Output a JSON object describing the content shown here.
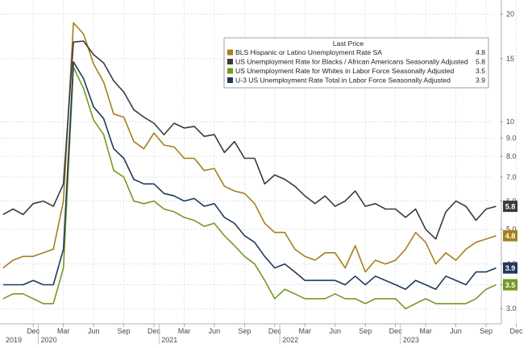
{
  "chart_data": {
    "type": "line",
    "title": "",
    "xlabel": "",
    "ylabel": "",
    "y_axis_position": "right",
    "y_scale": "log",
    "ylim": [
      2.75,
      21
    ],
    "y_ticks": [
      "3.0",
      "3.5",
      "4.0",
      "5.0",
      "6.0",
      "7.0",
      "8.0",
      "9.0",
      "10",
      "15",
      "20"
    ],
    "x_tick_labels": [
      "Dec",
      "Mar",
      "Jun",
      "Sep",
      "Dec",
      "Mar",
      "Jun",
      "Sep",
      "Dec",
      "Mar",
      "Jun",
      "Sep",
      "Dec",
      "Mar",
      "Jun",
      "Sep",
      "Dec",
      "Mar",
      "Jun",
      "Sep"
    ],
    "year_labels": [
      "2019",
      "2020",
      "2021",
      "2022",
      "2023"
    ],
    "legend_title": "Last Price",
    "legend_position": "top-right",
    "highlight": {
      "from_index": 50,
      "to_index": 53,
      "color": "#f08a95"
    },
    "x": [
      "2019-09",
      "2019-10",
      "2019-11",
      "2019-12",
      "2020-01",
      "2020-02",
      "2020-03",
      "2020-04",
      "2020-05",
      "2020-06",
      "2020-07",
      "2020-08",
      "2020-09",
      "2020-10",
      "2020-11",
      "2020-12",
      "2021-01",
      "2021-02",
      "2021-03",
      "2021-04",
      "2021-05",
      "2021-06",
      "2021-07",
      "2021-08",
      "2021-09",
      "2021-10",
      "2021-11",
      "2021-12",
      "2022-01",
      "2022-02",
      "2022-03",
      "2022-04",
      "2022-05",
      "2022-06",
      "2022-07",
      "2022-08",
      "2022-09",
      "2022-10",
      "2022-11",
      "2022-12",
      "2023-01",
      "2023-02",
      "2023-03",
      "2023-04",
      "2023-05",
      "2023-06",
      "2023-07",
      "2023-08",
      "2023-09",
      "2023-10"
    ],
    "series": [
      {
        "name": "BLS Hispanic or Latino Unemployment Rate SA",
        "last": "4.8",
        "color": "#a57f1c",
        "values": [
          3.9,
          4.1,
          4.2,
          4.2,
          4.3,
          4.4,
          6.0,
          18.9,
          17.6,
          14.5,
          12.9,
          10.5,
          10.3,
          8.8,
          8.4,
          9.3,
          8.6,
          8.5,
          7.9,
          7.9,
          7.3,
          7.4,
          6.6,
          6.4,
          6.3,
          5.9,
          5.2,
          4.9,
          4.9,
          4.4,
          4.2,
          4.1,
          4.3,
          4.3,
          3.9,
          4.5,
          3.8,
          4.1,
          4.0,
          4.1,
          4.4,
          4.9,
          4.6,
          4.0,
          4.3,
          4.1,
          4.4,
          4.6,
          4.7,
          4.8
        ]
      },
      {
        "name": "US Unemployment Rate for Blacks / African Americans Seasonally Adjusted",
        "last": "5.8",
        "color": "#3a3a3a",
        "values": [
          5.5,
          5.7,
          5.5,
          5.9,
          6.0,
          5.8,
          6.7,
          16.7,
          16.8,
          15.4,
          14.6,
          13.0,
          12.1,
          10.8,
          10.3,
          9.9,
          9.2,
          9.9,
          9.6,
          9.7,
          9.1,
          9.2,
          8.2,
          8.8,
          7.9,
          7.9,
          6.7,
          7.1,
          6.9,
          6.6,
          6.2,
          5.9,
          6.2,
          5.8,
          6.0,
          6.4,
          5.8,
          5.9,
          5.7,
          5.7,
          5.4,
          5.7,
          5.0,
          4.7,
          5.6,
          6.0,
          5.8,
          5.3,
          5.7,
          5.8
        ]
      },
      {
        "name": "US Unemployment Rate for Whites in Labor Force Seasonally Adjusted",
        "last": "3.5",
        "color": "#739a22",
        "values": [
          3.2,
          3.3,
          3.3,
          3.2,
          3.1,
          3.1,
          3.9,
          14.2,
          12.4,
          10.1,
          9.2,
          7.3,
          7.0,
          6.0,
          5.9,
          6.0,
          5.7,
          5.6,
          5.4,
          5.3,
          5.1,
          5.2,
          4.8,
          4.5,
          4.2,
          4.0,
          3.6,
          3.2,
          3.4,
          3.3,
          3.2,
          3.2,
          3.2,
          3.3,
          3.2,
          3.2,
          3.1,
          3.2,
          3.2,
          3.2,
          3.0,
          3.1,
          3.2,
          3.1,
          3.1,
          3.1,
          3.1,
          3.2,
          3.4,
          3.5
        ]
      },
      {
        "name": "U-3 US Unemployment Rate Total in Labor Force Seasonally Adjusted",
        "last": "3.9",
        "color": "#1f3a57",
        "values": [
          3.5,
          3.5,
          3.5,
          3.6,
          3.5,
          3.5,
          4.4,
          14.7,
          13.2,
          11.0,
          10.2,
          8.4,
          7.9,
          6.9,
          6.7,
          6.7,
          6.3,
          6.2,
          6.0,
          6.1,
          5.8,
          5.9,
          5.4,
          5.2,
          4.8,
          4.6,
          4.2,
          3.9,
          4.0,
          3.8,
          3.6,
          3.6,
          3.6,
          3.6,
          3.5,
          3.7,
          3.5,
          3.7,
          3.6,
          3.5,
          3.4,
          3.6,
          3.5,
          3.4,
          3.7,
          3.6,
          3.5,
          3.8,
          3.8,
          3.9
        ]
      }
    ]
  }
}
